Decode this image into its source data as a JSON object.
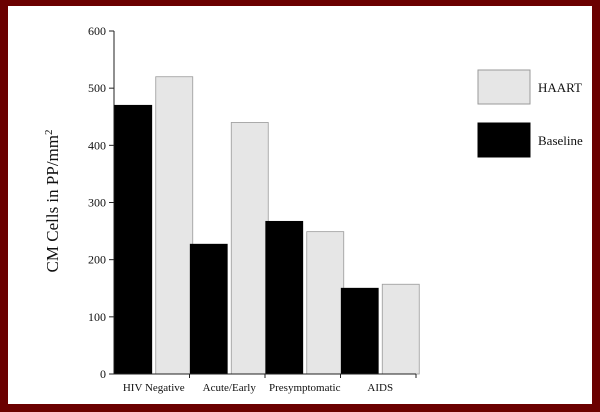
{
  "chart_data": {
    "type": "bar",
    "title": "",
    "xlabel": "",
    "ylabel": "CM Cells in PP/mm",
    "ylabel_superscript": "2",
    "ylim": [
      0,
      600
    ],
    "yticks": [
      0,
      100,
      200,
      300,
      400,
      500,
      600
    ],
    "categories": [
      "HIV Negative",
      "Acute/Early",
      "Presymptomatic",
      "AIDS"
    ],
    "series": [
      {
        "name": "Baseline",
        "color": "#000000",
        "values": [
          470,
          227,
          267,
          150
        ]
      },
      {
        "name": "HAART",
        "color": "#e6e6e6",
        "values": [
          520,
          440,
          249,
          157
        ]
      }
    ],
    "legend_position": "top-right",
    "legend_order": [
      "HAART",
      "Baseline"
    ],
    "grid": false,
    "colors": {
      "frame": "#6b0000",
      "panel": "#ffffff"
    }
  }
}
